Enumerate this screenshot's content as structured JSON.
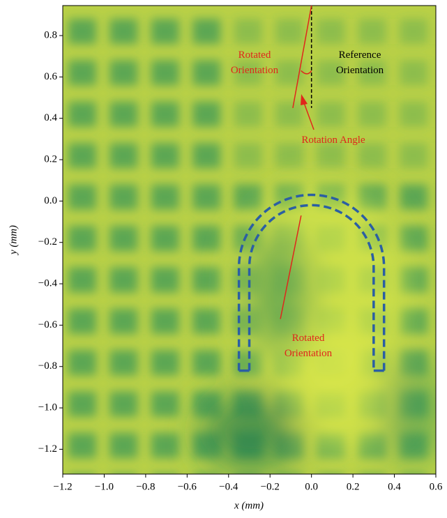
{
  "chart_data": {
    "type": "image",
    "xlabel": "x (mm)",
    "ylabel": "y (mm)",
    "xlim": [
      -1.2,
      0.6
    ],
    "ylim": [
      -1.32,
      0.945
    ],
    "xticks": [
      {
        "value": -1.2,
        "label": "−1.2"
      },
      {
        "value": -1.0,
        "label": "−1.0"
      },
      {
        "value": -0.8,
        "label": "−0.8"
      },
      {
        "value": -0.6,
        "label": "−0.6"
      },
      {
        "value": -0.4,
        "label": "−0.4"
      },
      {
        "value": -0.2,
        "label": "−0.2"
      },
      {
        "value": 0.0,
        "label": "0.0"
      },
      0.2,
      0.4,
      0.6
    ],
    "yticks": [
      {
        "value": -1.2,
        "label": "−1.2"
      },
      {
        "value": -1.0,
        "label": "−1.0"
      },
      {
        "value": -0.8,
        "label": "−0.8"
      },
      {
        "value": -0.6,
        "label": "−0.6"
      },
      {
        "value": -0.4,
        "label": "−0.4"
      },
      {
        "value": -0.2,
        "label": "−0.2"
      },
      {
        "value": 0.0,
        "label": "0.0"
      },
      0.2,
      0.4,
      0.6,
      0.8
    ],
    "annotations": [
      {
        "lines": [
          "Rotated",
          "Orientation"
        ],
        "color": "#e0261b"
      },
      {
        "lines": [
          "Reference",
          "Orientation"
        ],
        "color": "#000000"
      },
      {
        "lines": [
          "Rotation Angle"
        ],
        "color": "#e0261b"
      },
      {
        "lines": [
          "Rotated",
          "Orientation"
        ],
        "color": "#e0261b"
      }
    ],
    "outline_color": "#2b5fa3"
  }
}
